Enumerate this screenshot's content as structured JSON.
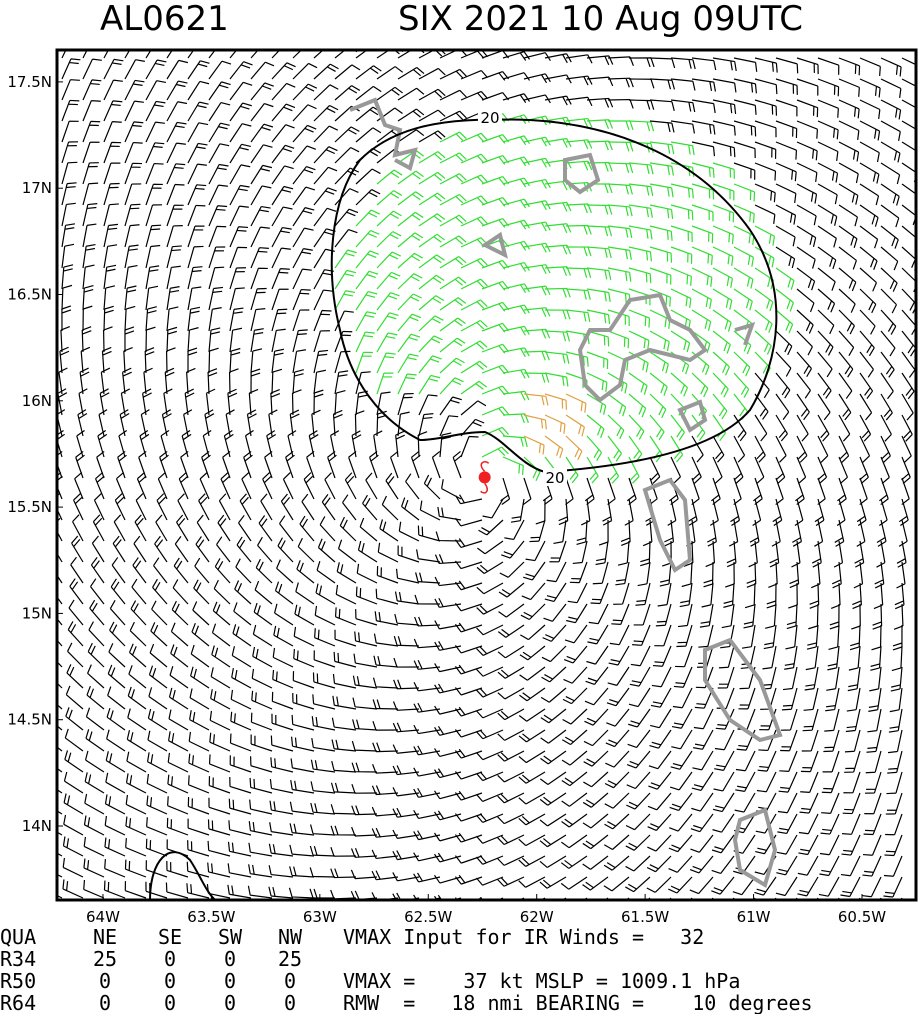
{
  "header": {
    "left": "AL0621",
    "right": "SIX 2021 10 Aug 09UTC"
  },
  "map": {
    "lonlim": [
      -64.212,
      -60.251
    ],
    "latlim": [
      13.652,
      17.65
    ],
    "lon_ticks": [
      {
        "value": -64,
        "label": "64W"
      },
      {
        "value": -63.5,
        "label": "63.5W"
      },
      {
        "value": -63,
        "label": "63W"
      },
      {
        "value": -62.5,
        "label": "62.5W"
      },
      {
        "value": -62,
        "label": "62W"
      },
      {
        "value": -61.5,
        "label": "61.5W"
      },
      {
        "value": -61,
        "label": "61W"
      },
      {
        "value": -60.5,
        "label": "60.5W"
      }
    ],
    "lat_ticks": [
      {
        "value": 14,
        "label": "14N"
      },
      {
        "value": 14.5,
        "label": "14.5N"
      },
      {
        "value": 15,
        "label": "15N"
      },
      {
        "value": 15.5,
        "label": "15.5N"
      },
      {
        "value": 16,
        "label": "16N"
      },
      {
        "value": 16.5,
        "label": "16.5N"
      },
      {
        "value": 17,
        "label": "17N"
      },
      {
        "value": 17.5,
        "label": "17.5N"
      }
    ],
    "storm_center": {
      "lon": -62.24,
      "lat": 15.64
    },
    "contour_labels": [
      "20",
      "20"
    ]
  },
  "table": {
    "rows": [
      [
        "QUA",
        "NE",
        "SE",
        "SW",
        "NW"
      ],
      [
        "R34",
        "25",
        "0",
        "0",
        "25"
      ],
      [
        "R50",
        "0",
        "0",
        "0",
        "0"
      ],
      [
        "R64",
        "0",
        "0",
        "0",
        "0"
      ]
    ],
    "info": [
      "VMAX Input for IR Winds =   32",
      "",
      "VMAX =    37 kt MSLP = 1009.1 hPa",
      "RMW  =   18 nmi BEARING =    10 degrees"
    ]
  }
}
